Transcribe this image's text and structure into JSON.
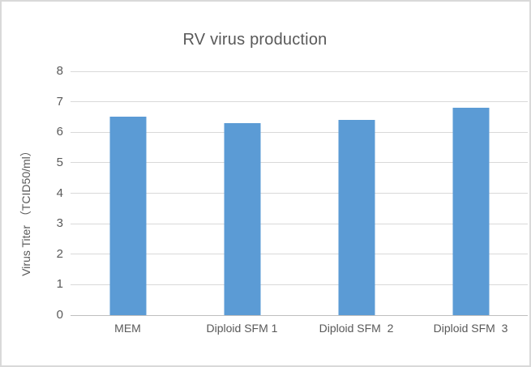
{
  "frame": {
    "background": "#FFFFFF",
    "border_color": "#D9D9D9"
  },
  "chart_data": {
    "type": "bar",
    "title": "RV virus production",
    "categories": [
      "MEM",
      "Diploid SFM 1",
      "Diploid SFM  2",
      "Diploid SFM  3"
    ],
    "values": [
      6.5,
      6.3,
      6.4,
      6.8
    ],
    "xlabel": "",
    "ylabel": "Virus Titer （TCID50/ml）",
    "ylim": [
      0,
      8
    ],
    "yticks": [
      0,
      1,
      2,
      3,
      4,
      5,
      6,
      7,
      8
    ],
    "grid": true,
    "legend_position": "none",
    "colors": {
      "bar": "#5B9BD5",
      "gridline": "#D9D9D9",
      "axis_line": "#BFBFBF",
      "tick_text": "#595959",
      "title_text": "#595959"
    }
  }
}
